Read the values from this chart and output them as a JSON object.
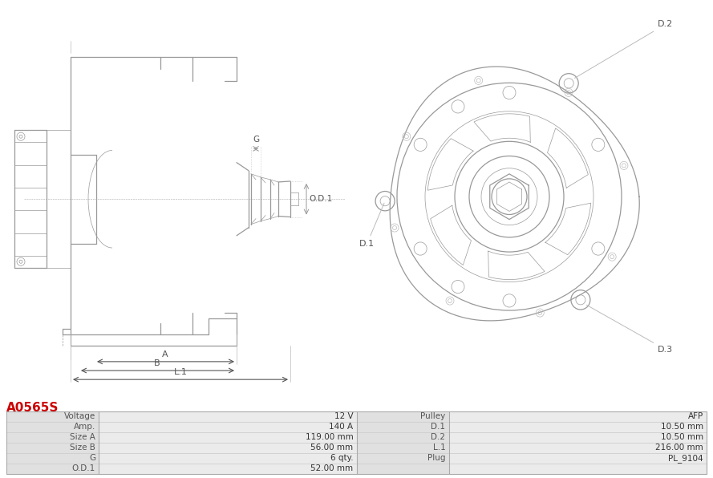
{
  "title": "A0565S",
  "title_color": "#cc0000",
  "table_data": [
    [
      "Voltage",
      "12 V",
      "Pulley",
      "AFP"
    ],
    [
      "Amp.",
      "140 A",
      "D.1",
      "10.50 mm"
    ],
    [
      "Size A",
      "119.00 mm",
      "D.2",
      "10.50 mm"
    ],
    [
      "Size B",
      "56.00 mm",
      "L.1",
      "216.00 mm"
    ],
    [
      "G",
      "6 qty.",
      "Plug",
      "PL_9104"
    ],
    [
      "O.D.1",
      "52.00 mm",
      "",
      ""
    ]
  ],
  "lc": "#999999",
  "lc2": "#bbbbbb",
  "lw": 0.9,
  "thin": 0.5,
  "label_color": "#666666",
  "dim_color": "#555555"
}
